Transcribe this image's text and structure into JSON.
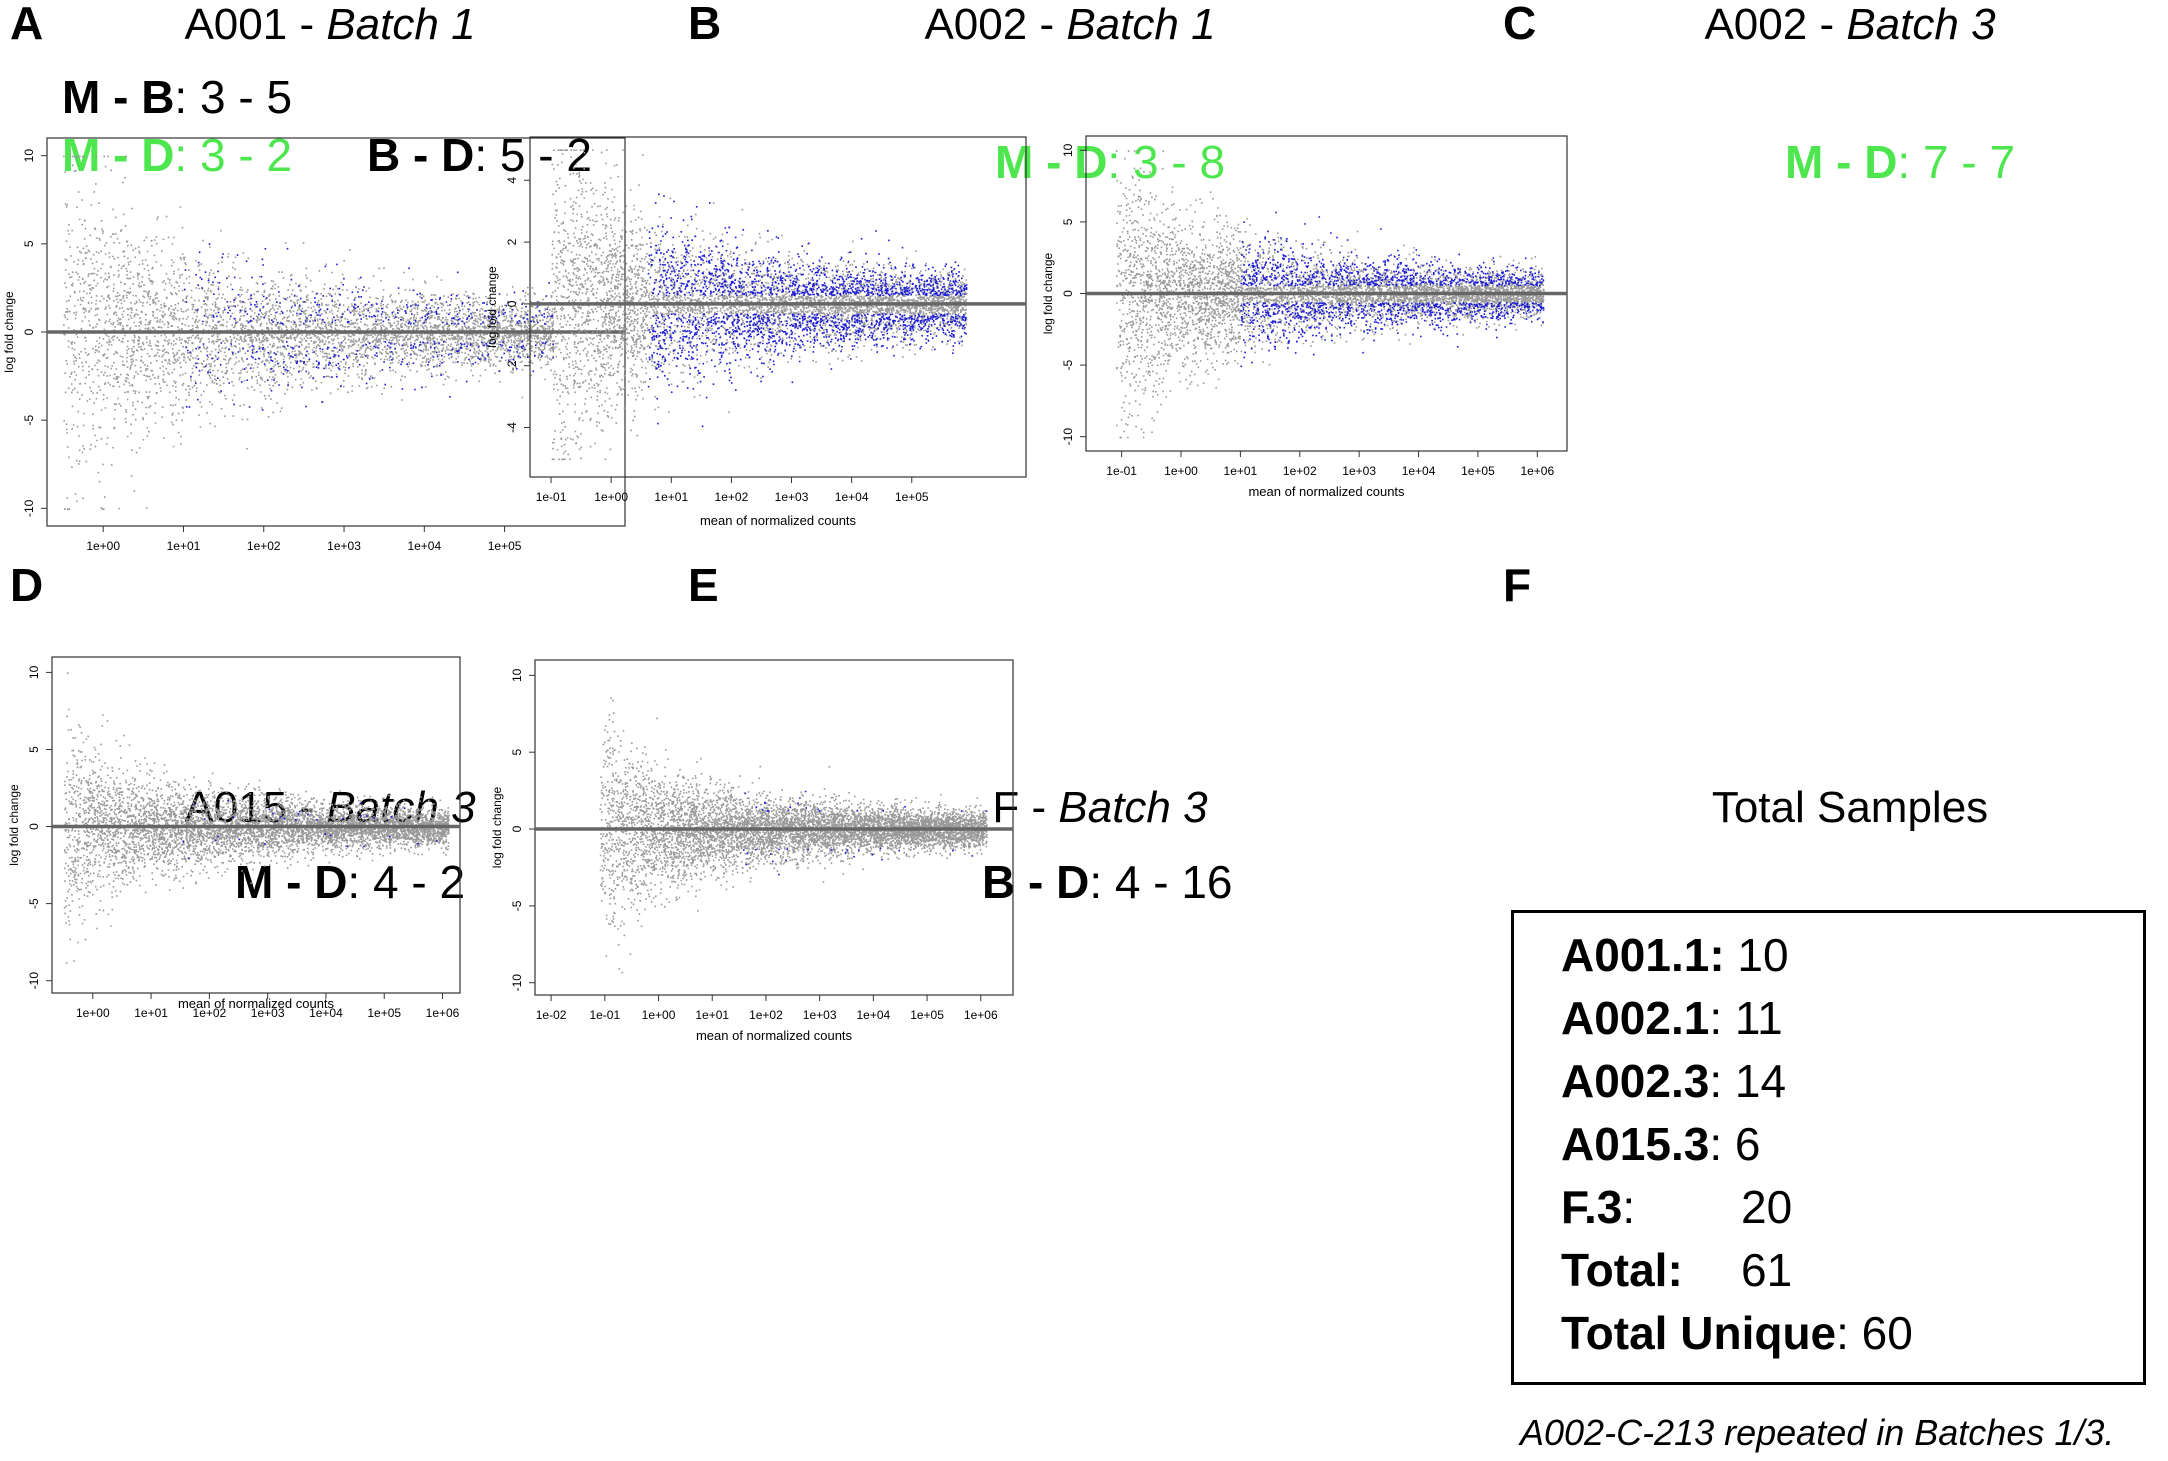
{
  "panels": [
    {
      "id": "A",
      "letter": "A",
      "sample": "A001 - ",
      "batch": "Batch 1",
      "comparisons": [
        {
          "label": "M - B",
          "value": ": 3 - 5",
          "color": "#000000"
        },
        {
          "label": "M - D",
          "value": ": 3 - 2",
          "color": "#4ee64e"
        },
        {
          "label": "B - D",
          "value": ": 5 - 2",
          "color": "#000000"
        }
      ]
    },
    {
      "id": "B",
      "letter": "B",
      "sample": "A002 - ",
      "batch": "Batch 1",
      "comparisons": [
        {
          "label": "M - D",
          "value": ": 3 - 8",
          "color": "#4ee64e"
        }
      ]
    },
    {
      "id": "C",
      "letter": "C",
      "sample": "A002 - ",
      "batch": "Batch 3",
      "comparisons": [
        {
          "label": "M - D",
          "value": ": 7 - 7",
          "color": "#4ee64e"
        }
      ]
    },
    {
      "id": "D",
      "letter": "D",
      "sample": "A015 - ",
      "batch": "Batch 3",
      "comparisons": [
        {
          "label": "M - D",
          "value": ": 4 - 2",
          "color": "#000000"
        }
      ]
    },
    {
      "id": "E",
      "letter": "E",
      "sample": "F - ",
      "batch": "Batch 3",
      "comparisons": [
        {
          "label": "B - D",
          "value": ": 4 - 16",
          "color": "#000000"
        }
      ]
    }
  ],
  "chart_data": [
    {
      "id": "A",
      "type": "scatter",
      "title": "A001 - Batch 1",
      "xlabel": "",
      "ylabel": "log fold change",
      "xscale": "log10",
      "xlim": [
        -0.7,
        6.5
      ],
      "ylim": [
        -11,
        11
      ],
      "xticks": [
        0,
        1,
        2,
        3,
        4,
        5
      ],
      "xticklabels": [
        "1e+00",
        "1e+01",
        "1e+02",
        "1e+03",
        "1e+04",
        "1e+05"
      ],
      "yticks": [
        -10,
        -5,
        0,
        5,
        10
      ],
      "yticklabels": [
        "-10",
        "-5",
        "0",
        "5",
        "10"
      ],
      "hline": 0,
      "series_colors": {
        "not_significant": "#999999",
        "significant": "#1a1adb"
      },
      "sim": {
        "xmin": -0.5,
        "xmax": 5.6,
        "yscale": 5.5,
        "sigfrac": 0.22,
        "sigminx": 1.0,
        "sigthr": 0.5,
        "seed": 11,
        "n": 5000,
        "cap": 10
      }
    },
    {
      "id": "B",
      "type": "scatter",
      "title": "A002 - Batch 1",
      "xlabel": "mean of normalized counts",
      "ylabel": "log fold change",
      "xscale": "log10",
      "xlim": [
        -1.35,
        6.9
      ],
      "ylim": [
        -5.6,
        5.4
      ],
      "xticks": [
        -1,
        0,
        1,
        2,
        3,
        4,
        5
      ],
      "xticklabels": [
        "1e-01",
        "1e+00",
        "1e+01",
        "1e+02",
        "1e+03",
        "1e+04",
        "1e+05"
      ],
      "yticks": [
        -4,
        -2,
        0,
        2,
        4
      ],
      "yticklabels": [
        "-4",
        "-2",
        "0",
        "2",
        "4"
      ],
      "hline": 0,
      "series_colors": {
        "not_significant": "#999999",
        "significant": "#1a1adb"
      },
      "sim": {
        "xmin": -1.0,
        "xmax": 5.9,
        "yscale": 3.2,
        "sigfrac": 0.55,
        "sigminx": 0.6,
        "sigthr": 0.3,
        "seed": 23,
        "n": 7000,
        "cap": 5
      }
    },
    {
      "id": "C",
      "type": "scatter",
      "title": "A002 - Batch 3",
      "xlabel": "mean of normalized counts",
      "ylabel": "log fold change",
      "xscale": "log10",
      "xlim": [
        -1.6,
        6.5
      ],
      "ylim": [
        -11,
        11
      ],
      "xticks": [
        -1,
        0,
        1,
        2,
        3,
        4,
        5,
        6
      ],
      "xticklabels": [
        "1e-01",
        "1e+00",
        "1e+01",
        "1e+02",
        "1e+03",
        "1e+04",
        "1e+05",
        "1e+06"
      ],
      "yticks": [
        -10,
        -5,
        0,
        5,
        10
      ],
      "yticklabels": [
        "-10",
        "-5",
        "0",
        "5",
        "10"
      ],
      "hline": 0,
      "series_colors": {
        "not_significant": "#999999",
        "significant": "#1a1adb"
      },
      "sim": {
        "xmin": -1.1,
        "xmax": 6.1,
        "yscale": 5.5,
        "sigfrac": 0.5,
        "sigminx": 1.0,
        "sigthr": 0.6,
        "seed": 37,
        "n": 7000,
        "cap": 10
      }
    },
    {
      "id": "D",
      "type": "scatter",
      "title": "A015 - Batch 3",
      "xlabel": "mean of normalized counts",
      "ylabel": "log fold change",
      "xscale": "log10",
      "xlim": [
        -0.7,
        6.3
      ],
      "ylim": [
        -10.8,
        11
      ],
      "xticks": [
        0,
        1,
        2,
        3,
        4,
        5,
        6
      ],
      "xticklabels": [
        "1e+00",
        "1e+01",
        "1e+02",
        "1e+03",
        "1e+04",
        "1e+05",
        "1e+06"
      ],
      "yticks": [
        -10,
        -5,
        0,
        5,
        10
      ],
      "yticklabels": [
        "-10",
        "-5",
        "0",
        "5",
        "10"
      ],
      "hline": 0,
      "series_colors": {
        "not_significant": "#999999",
        "significant": "#1a1adb"
      },
      "sim": {
        "xmin": -0.5,
        "xmax": 6.1,
        "yscale": 3.5,
        "sigfrac": 0.015,
        "sigminx": 1.5,
        "sigthr": 0.4,
        "seed": 41,
        "n": 6000,
        "cap": 10
      }
    },
    {
      "id": "E",
      "type": "scatter",
      "title": "F - Batch 3",
      "xlabel": "mean of normalized counts",
      "ylabel": "log fold change",
      "xscale": "log10",
      "xlim": [
        -2.3,
        6.6
      ],
      "ylim": [
        -10.8,
        11
      ],
      "xticks": [
        -2,
        -1,
        0,
        1,
        2,
        3,
        4,
        5,
        6
      ],
      "xticklabels": [
        "1e-02",
        "1e-01",
        "1e+00",
        "1e+01",
        "1e+02",
        "1e+03",
        "1e+04",
        "1e+05",
        "1e+06"
      ],
      "yticks": [
        -10,
        -5,
        0,
        5,
        10
      ],
      "yticklabels": [
        "-10",
        "-5",
        "0",
        "5",
        "10"
      ],
      "hline": 0,
      "series_colors": {
        "not_significant": "#999999",
        "significant": "#1a1adb"
      },
      "sim": {
        "xmin": -1.1,
        "xmax": 6.1,
        "yscale": 3.8,
        "sigfrac": 0.07,
        "sigminx": 1.5,
        "sigthr": 1.2,
        "seed": 53,
        "n": 7000,
        "cap": 10
      }
    }
  ],
  "summary": {
    "letter": "F",
    "title": "Total Samples",
    "rows": [
      {
        "label": "A001.1:",
        "value": " 10",
        "bold_colon": true
      },
      {
        "label": "A002.1",
        "value": ": 11",
        "bold_colon": false
      },
      {
        "label": "A002.3",
        "value": ": 14",
        "bold_colon": false
      },
      {
        "label": "A015.3",
        "value": ": 6",
        "bold_colon": false
      },
      {
        "label": "F.3",
        "value": ":",
        "value2": "20",
        "bold_colon": false
      },
      {
        "label": "Total:",
        "value": "",
        "value2": "61",
        "bold_colon": true
      },
      {
        "label": "Total Unique",
        "value": ": 60",
        "bold_colon": false
      }
    ],
    "note": "A002-C-213 repeated in Batches 1/3."
  }
}
